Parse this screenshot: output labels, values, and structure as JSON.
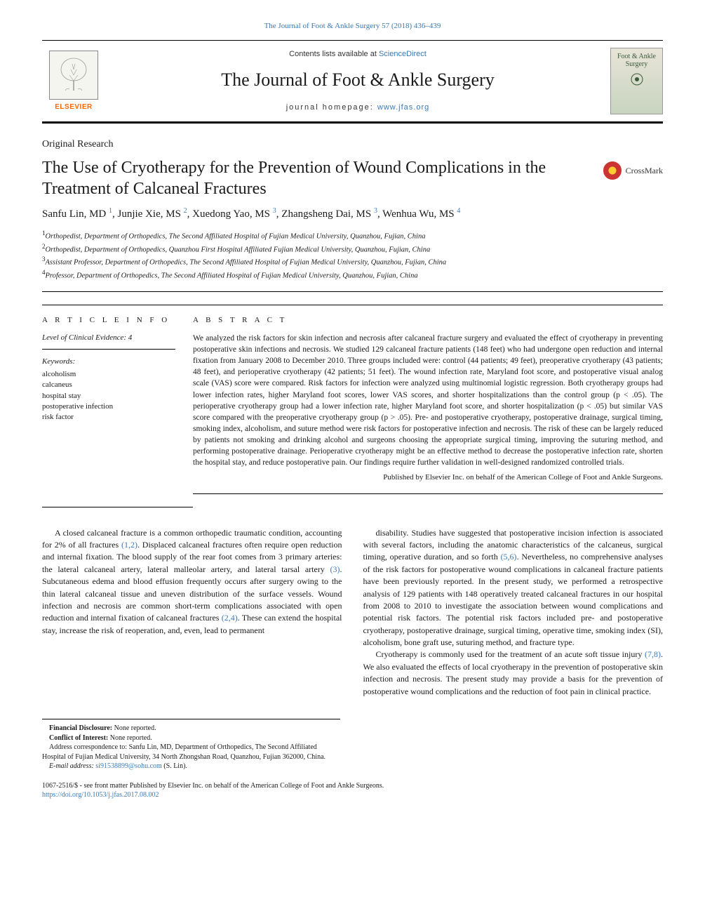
{
  "top_citation": "The Journal of Foot & Ankle Surgery 57 (2018) 436–439",
  "header": {
    "contents_prefix": "Contents lists available at ",
    "contents_link": "ScienceDirect",
    "journal_name": "The Journal of Foot & Ankle Surgery",
    "homepage_prefix": "journal homepage: ",
    "homepage_link": "www.jfas.org",
    "elsevier_label": "ELSEVIER",
    "cover_label": "Foot & Ankle Surgery"
  },
  "article_type": "Original Research",
  "title": "The Use of Cryotherapy for the Prevention of Wound Complications in the Treatment of Calcaneal Fractures",
  "crossmark_label": "CrossMark",
  "authors_html": "Sanfu Lin, MD <sup>1</sup>, Junjie Xie, MS <sup>2</sup>, Xuedong Yao, MS <sup>3</sup>, Zhangsheng Dai, MS <sup>3</sup>, Wenhua Wu, MS <sup>4</sup>",
  "affiliations": [
    "Orthopedist, Department of Orthopedics, The Second Affiliated Hospital of Fujian Medical University, Quanzhou, Fujian, China",
    "Orthopedist, Department of Orthopedics, Quanzhou First Hospital Affiliated Fujian Medical University, Quanzhou, Fujian, China",
    "Assistant Professor, Department of Orthopedics, The Second Affiliated Hospital of Fujian Medical University, Quanzhou, Fujian, China",
    "Professor, Department of Orthopedics, The Second Affiliated Hospital of Fujian Medical University, Quanzhou, Fujian, China"
  ],
  "info": {
    "heading": "A R T I C L E   I N F O",
    "evidence": "Level of Clinical Evidence: 4",
    "keywords_label": "Keywords:",
    "keywords": [
      "alcoholism",
      "calcaneus",
      "hospital stay",
      "postoperative infection",
      "risk factor"
    ]
  },
  "abstract": {
    "heading": "A B S T R A C T",
    "text": "We analyzed the risk factors for skin infection and necrosis after calcaneal fracture surgery and evaluated the effect of cryotherapy in preventing postoperative skin infections and necrosis. We studied 129 calcaneal fracture patients (148 feet) who had undergone open reduction and internal fixation from January 2008 to December 2010. Three groups included were: control (44 patients; 49 feet), preoperative cryotherapy (43 patients; 48 feet), and perioperative cryotherapy (42 patients; 51 feet). The wound infection rate, Maryland foot score, and postoperative visual analog scale (VAS) score were compared. Risk factors for infection were analyzed using multinomial logistic regression. Both cryotherapy groups had lower infection rates, higher Maryland foot scores, lower VAS scores, and shorter hospitalizations than the control group (p < .05). The perioperative cryotherapy group had a lower infection rate, higher Maryland foot score, and shorter hospitalization (p < .05) but similar VAS score compared with the preoperative cryotherapy group (p > .05). Pre- and postoperative cryotherapy, postoperative drainage, surgical timing, smoking index, alcoholism, and suture method were risk factors for postoperative infection and necrosis. The risk of these can be largely reduced by patients not smoking and drinking alcohol and surgeons choosing the appropriate surgical timing, improving the suturing method, and performing postoperative drainage. Perioperative cryotherapy might be an effective method to decrease the postoperative infection rate, shorten the hospital stay, and reduce postoperative pain. Our findings require further validation in well-designed randomized controlled trials.",
    "publisher": "Published by Elsevier Inc. on behalf of the American College of Foot and Ankle Surgeons."
  },
  "body": {
    "col1_p1": "A closed calcaneal fracture is a common orthopedic traumatic condition, accounting for 2% of all fractures ",
    "col1_ref1": "(1,2)",
    "col1_p1b": ". Displaced calcaneal fractures often require open reduction and internal fixation. The blood supply of the rear foot comes from 3 primary arteries: the lateral calcaneal artery, lateral malleolar artery, and lateral tarsal artery ",
    "col1_ref2": "(3)",
    "col1_p1c": ". Subcutaneous edema and blood effusion frequently occurs after surgery owing to the thin lateral calcaneal tissue and uneven distribution of the surface vessels. Wound infection and necrosis are common short-term complications associated with open reduction and internal fixation of calcaneal fractures ",
    "col1_ref3": "(2,4)",
    "col1_p1d": ". These can extend the hospital stay, increase the risk of reoperation, and, even, lead to permanent",
    "col2_p1a": "disability. Studies have suggested that postoperative incision infection is associated with several factors, including the anatomic characteristics of the calcaneus, surgical timing, operative duration, and so forth ",
    "col2_ref1": "(5,6)",
    "col2_p1b": ". Nevertheless, no comprehensive analyses of the risk factors for postoperative wound complications in calcaneal fracture patients have been previously reported. In the present study, we performed a retrospective analysis of 129 patients with 148 operatively treated calcaneal fractures in our hospital from 2008 to 2010 to investigate the association between wound complications and potential risk factors. The potential risk factors included pre- and postoperative cryotherapy, postoperative drainage, surgical timing, operative time, smoking index (SI), alcoholism, bone graft use, suturing method, and fracture type.",
    "col2_p2a": "Cryotherapy is commonly used for the treatment of an acute soft tissue injury ",
    "col2_ref2": "(7,8)",
    "col2_p2b": ". We also evaluated the effects of local cryotherapy in the prevention of postoperative skin infection and necrosis. The present study may provide a basis for the prevention of postoperative wound complications and the reduction of foot pain in clinical practice."
  },
  "footnotes": {
    "financial_label": "Financial Disclosure:",
    "financial_text": " None reported.",
    "conflict_label": "Conflict of Interest:",
    "conflict_text": " None reported.",
    "address": "Address correspondence to: Sanfu Lin, MD, Department of Orthopedics, The Second Affiliated Hospital of Fujian Medical University, 34 North Zhongshan Road, Quanzhou, Fujian 362000, China.",
    "email_label": "E-mail address: ",
    "email": "si91538899@sohu.com",
    "email_suffix": " (S. Lin)."
  },
  "bottom": {
    "copyright": "1067-2516/$ - see front matter Published by Elsevier Inc. on behalf of the American College of Foot and Ankle Surgeons.",
    "doi": "https://doi.org/10.1053/j.jfas.2017.08.002"
  },
  "colors": {
    "link": "#3b7ab5",
    "elsevier_orange": "#ff6600",
    "text": "#1a1a1a"
  }
}
